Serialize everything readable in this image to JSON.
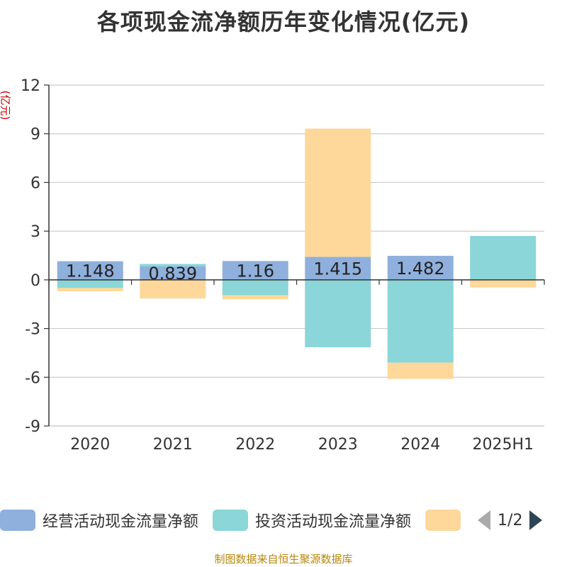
{
  "chart_data": {
    "type": "bar",
    "stacked": true,
    "title": "各项现金流净额历年变化情况(亿元)",
    "ylabel": "(亿元)",
    "categories": [
      "2020",
      "2021",
      "2022",
      "2023",
      "2024",
      "2025H1"
    ],
    "y_ticks": [
      "12",
      "9",
      "6",
      "3",
      "0",
      "-3",
      "-6",
      "-9"
    ],
    "ylim": [
      -9,
      12
    ],
    "grid": true,
    "legend_position": "bottom",
    "series": [
      {
        "name": "经营活动现金流量净额",
        "color": "#8fb0dc",
        "values": [
          1.148,
          0.839,
          1.16,
          1.415,
          1.482,
          -0.02
        ],
        "labels": [
          "1.148",
          "0.839",
          "1.16",
          "1.415",
          "1.482",
          ""
        ]
      },
      {
        "name": "投资活动现金流量净额",
        "color": "#8ad6d8",
        "values": [
          -0.5,
          0.14,
          -0.95,
          -4.15,
          -5.1,
          2.7
        ]
      },
      {
        "name": "",
        "color": "#fdd89a",
        "values": [
          -0.2,
          -1.15,
          -0.25,
          7.9,
          -1.0,
          -0.45
        ]
      }
    ]
  },
  "legend": {
    "pager": "1/2"
  },
  "source": "制图数据来自恒生聚源数据库"
}
